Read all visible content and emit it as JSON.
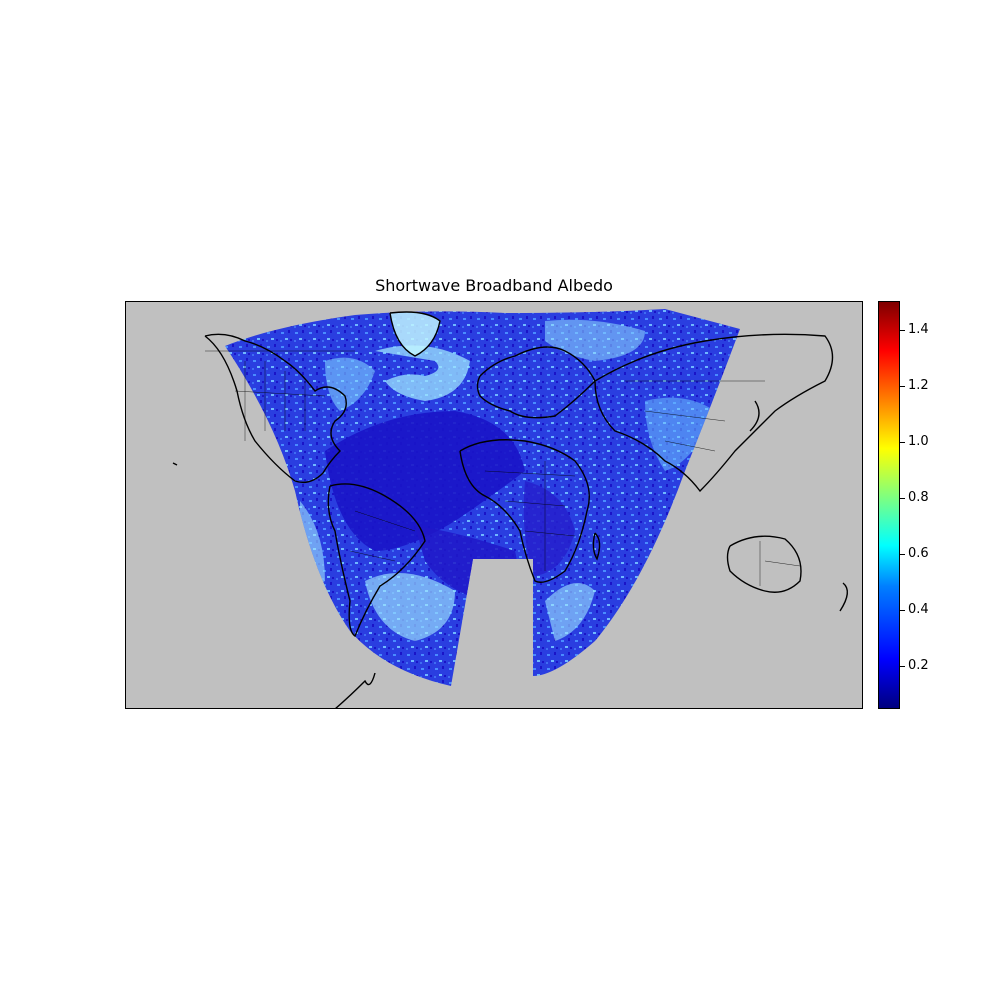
{
  "title": "Shortwave Broadband Albedo",
  "colors": {
    "background": "#c0c0c0",
    "coast": "#000000",
    "albedo_low": "#1a14c8",
    "albedo_mid": "#3f8cff",
    "albedo_high": "#a8ecff"
  },
  "colorbar": {
    "min": 0.05,
    "max": 1.5,
    "colormap": "jet",
    "ticks": [
      {
        "value": 0.2,
        "label": "0.2"
      },
      {
        "value": 0.4,
        "label": "0.4"
      },
      {
        "value": 0.6,
        "label": "0.6"
      },
      {
        "value": 0.8,
        "label": "0.8"
      },
      {
        "value": 1.0,
        "label": "1.0"
      },
      {
        "value": 1.2,
        "label": "1.2"
      },
      {
        "value": 1.4,
        "label": "1.4"
      }
    ]
  }
}
